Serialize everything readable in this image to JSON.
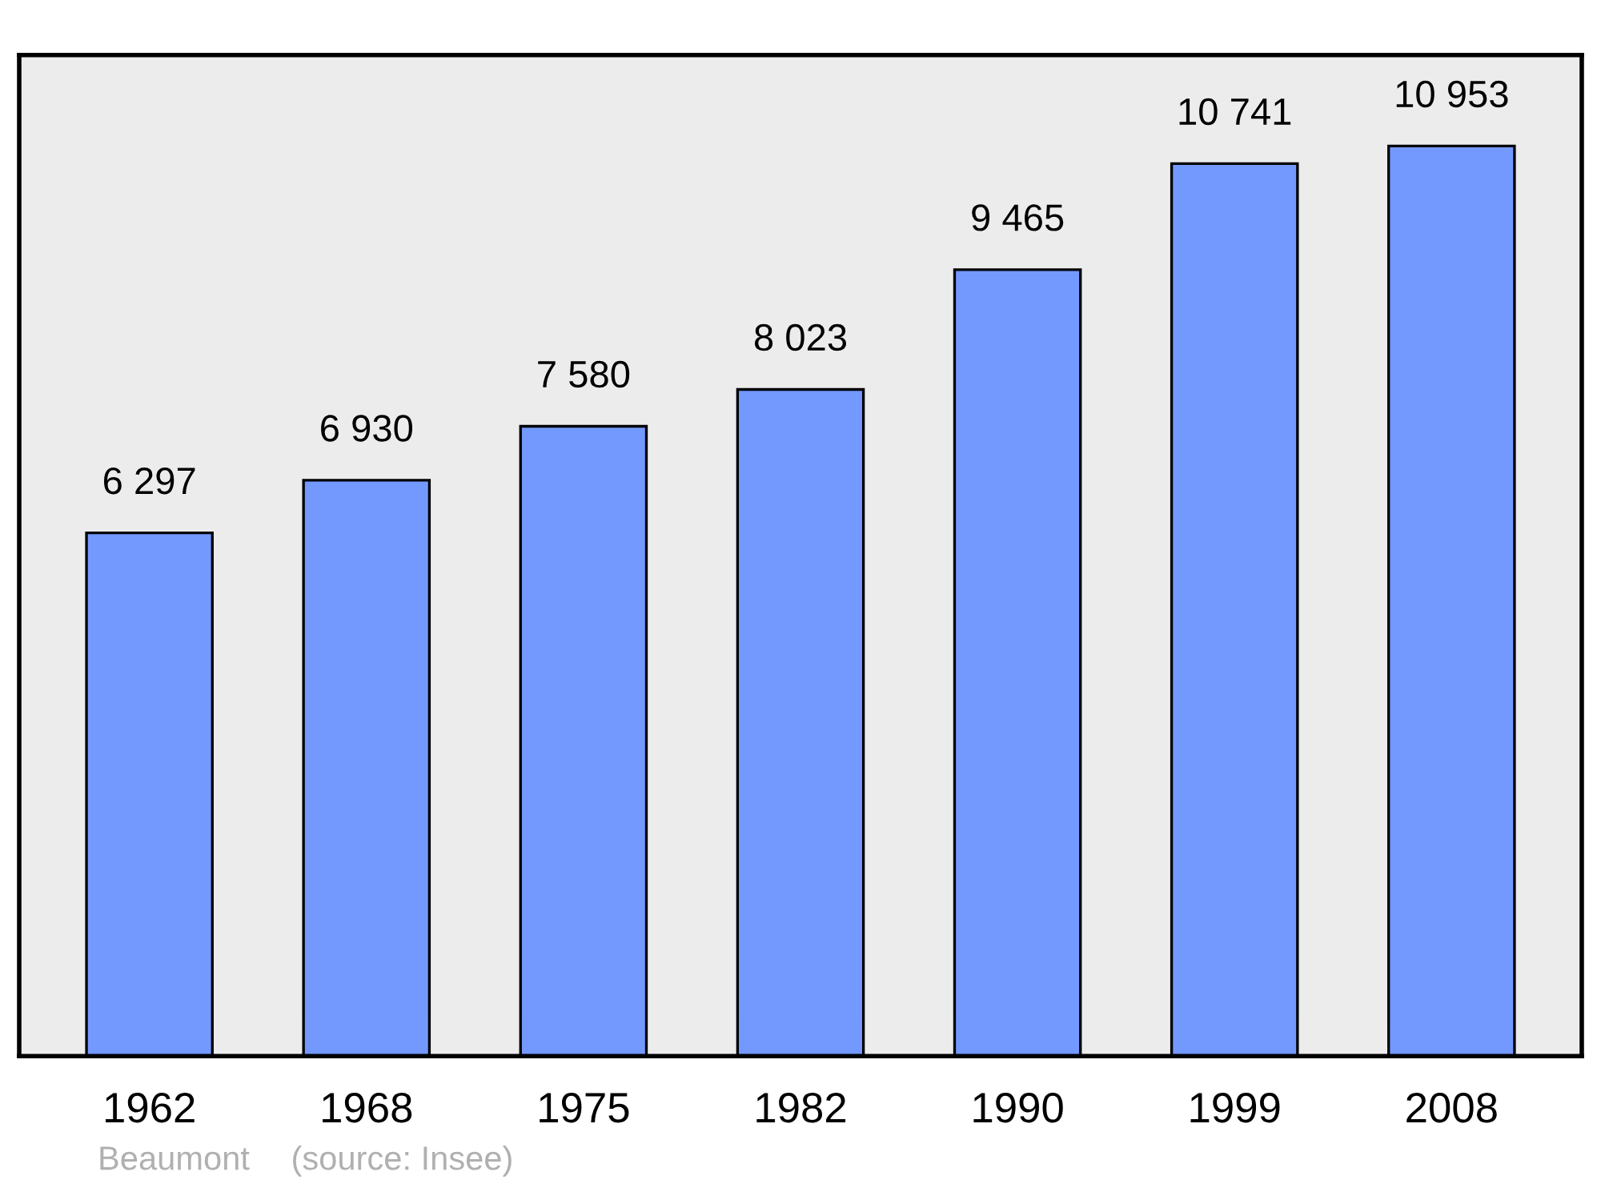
{
  "chart_data": {
    "type": "bar",
    "categories": [
      "1962",
      "1968",
      "1975",
      "1982",
      "1990",
      "1999",
      "2008"
    ],
    "values": [
      6297,
      6930,
      7580,
      8023,
      9465,
      10741,
      10953
    ],
    "value_labels": [
      "6 297",
      "6 930",
      "7 580",
      "8 023",
      "9 465",
      "10 741",
      "10 953"
    ],
    "color": "#7399ff",
    "tick_labels": "x",
    "grid": false,
    "legend": false,
    "annotations": [
      "Beaumont",
      "(source: Insee)"
    ]
  }
}
